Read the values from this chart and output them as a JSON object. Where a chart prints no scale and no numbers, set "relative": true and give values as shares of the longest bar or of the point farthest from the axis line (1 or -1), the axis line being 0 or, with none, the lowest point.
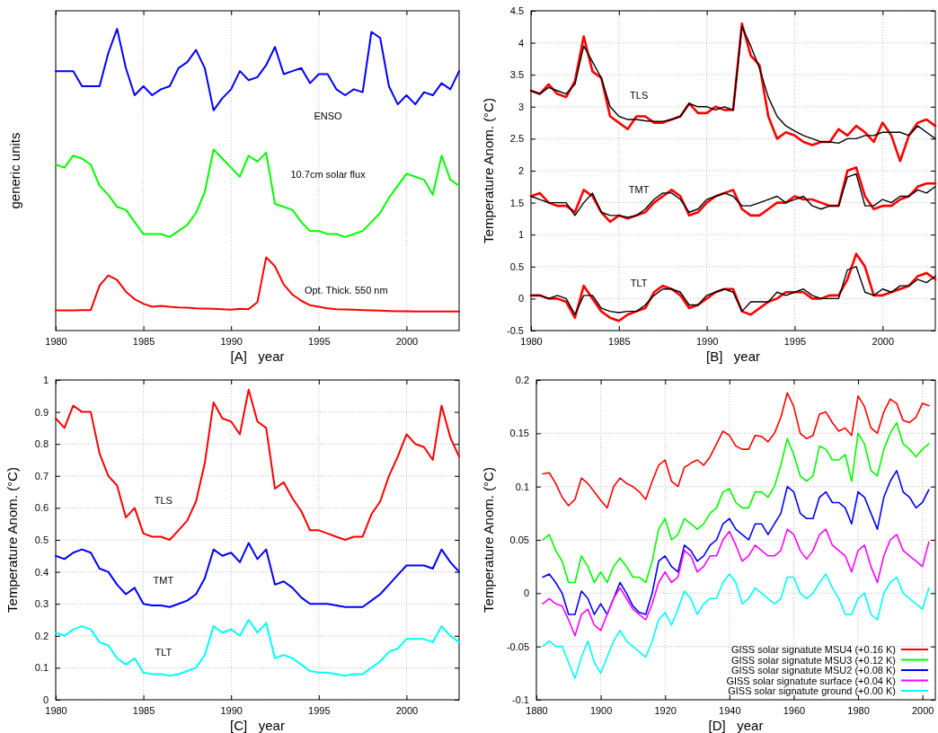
{
  "chart_data": [
    {
      "type": "line",
      "relative": true,
      "xlabel": "[A]   year",
      "ylabel": "generic units",
      "xlim": [
        1980,
        2003
      ],
      "xticks": [
        1980,
        1985,
        1990,
        1995,
        2000
      ],
      "grid": "x",
      "tick_labels": "x",
      "x": [
        1980,
        1980.5,
        1981,
        1981.5,
        1982,
        1982.5,
        1983,
        1983.5,
        1984,
        1984.5,
        1985,
        1985.5,
        1986,
        1986.5,
        1987,
        1987.5,
        1988,
        1988.5,
        1989,
        1989.5,
        1990,
        1990.5,
        1991,
        1991.5,
        1992,
        1992.5,
        1993,
        1993.5,
        1994,
        1994.5,
        1995,
        1995.5,
        1996,
        1996.5,
        1997,
        1997.5,
        1998,
        1998.5,
        1999,
        1999.5,
        2000,
        2000.5,
        2001,
        2001.5,
        2002,
        2002.5,
        2003
      ],
      "series": [
        {
          "name": "ENSO",
          "color": "#0000ff",
          "values": [
            0.86,
            0.86,
            0.86,
            0.81,
            0.81,
            0.81,
            0.92,
            1.0,
            0.87,
            0.78,
            0.81,
            0.78,
            0.8,
            0.81,
            0.87,
            0.89,
            0.93,
            0.87,
            0.73,
            0.77,
            0.8,
            0.86,
            0.83,
            0.84,
            0.88,
            0.94,
            0.85,
            0.86,
            0.87,
            0.82,
            0.85,
            0.85,
            0.8,
            0.78,
            0.8,
            0.79,
            0.99,
            0.97,
            0.81,
            0.75,
            0.78,
            0.75,
            0.79,
            0.78,
            0.82,
            0.8,
            0.86
          ]
        },
        {
          "name": "10.7cm solar flux",
          "color": "#00ff00",
          "values": [
            0.55,
            0.54,
            0.58,
            0.57,
            0.55,
            0.48,
            0.45,
            0.41,
            0.4,
            0.36,
            0.32,
            0.32,
            0.32,
            0.31,
            0.33,
            0.35,
            0.39,
            0.46,
            0.6,
            0.57,
            0.54,
            0.51,
            0.58,
            0.56,
            0.59,
            0.42,
            0.41,
            0.4,
            0.36,
            0.33,
            0.33,
            0.32,
            0.32,
            0.31,
            0.32,
            0.33,
            0.36,
            0.39,
            0.44,
            0.48,
            0.52,
            0.51,
            0.5,
            0.45,
            0.58,
            0.5,
            0.48
          ]
        },
        {
          "name": "Opt. Thick. 550 nm",
          "color": "#ff0000",
          "values": [
            0.067,
            0.067,
            0.067,
            0.068,
            0.068,
            0.149,
            0.183,
            0.168,
            0.129,
            0.104,
            0.089,
            0.079,
            0.082,
            0.079,
            0.077,
            0.076,
            0.074,
            0.073,
            0.072,
            0.071,
            0.069,
            0.072,
            0.071,
            0.094,
            0.243,
            0.213,
            0.153,
            0.119,
            0.099,
            0.084,
            0.079,
            0.074,
            0.071,
            0.07,
            0.069,
            0.068,
            0.067,
            0.066,
            0.065,
            0.064,
            0.064,
            0.063,
            0.063,
            0.063,
            0.063,
            0.063,
            0.063
          ]
        }
      ]
    },
    {
      "type": "line",
      "xlabel": "[B]   year",
      "ylabel": "Temperature Anom. (°C)",
      "xlim": [
        1980,
        2003
      ],
      "xticks": [
        1980,
        1985,
        1990,
        1995,
        2000
      ],
      "ylim": [
        -0.5,
        4.5
      ],
      "yticks": [
        -0.5,
        0,
        0.5,
        1,
        1.5,
        2,
        2.5,
        3,
        3.5,
        4,
        4.5
      ],
      "grid": true,
      "x": [
        1980,
        1980.5,
        1981,
        1981.5,
        1982,
        1982.5,
        1983,
        1983.5,
        1984,
        1984.5,
        1985,
        1985.5,
        1986,
        1986.5,
        1987,
        1987.5,
        1988,
        1988.5,
        1989,
        1989.5,
        1990,
        1990.5,
        1991,
        1991.5,
        1992,
        1992.5,
        1993,
        1993.5,
        1994,
        1994.5,
        1995,
        1995.5,
        1996,
        1996.5,
        1997,
        1997.5,
        1998,
        1998.5,
        1999,
        1999.5,
        2000,
        2000.5,
        2001,
        2001.5,
        2002,
        2002.5,
        2003
      ],
      "series": [
        {
          "name": "TLS",
          "color": "#ff0000",
          "values": [
            3.25,
            3.2,
            3.35,
            3.2,
            3.15,
            3.4,
            4.1,
            3.55,
            3.45,
            2.85,
            2.75,
            2.65,
            2.85,
            2.85,
            2.75,
            2.75,
            2.8,
            2.85,
            3.05,
            2.9,
            2.9,
            3.0,
            2.95,
            2.95,
            4.3,
            3.8,
            3.65,
            2.85,
            2.5,
            2.6,
            2.55,
            2.45,
            2.4,
            2.45,
            2.45,
            2.65,
            2.55,
            2.7,
            2.6,
            2.45,
            2.75,
            2.55,
            2.15,
            2.55,
            2.75,
            2.8,
            2.7
          ]
        },
        {
          "color": "#000000",
          "values": [
            3.25,
            3.2,
            3.3,
            3.25,
            3.2,
            3.35,
            3.95,
            3.7,
            3.45,
            3.0,
            2.85,
            2.8,
            2.8,
            2.78,
            2.77,
            2.77,
            2.8,
            2.85,
            3.05,
            3.0,
            3.0,
            2.95,
            3.0,
            2.95,
            4.25,
            3.95,
            3.6,
            3.15,
            2.85,
            2.7,
            2.62,
            2.55,
            2.5,
            2.45,
            2.45,
            2.43,
            2.5,
            2.5,
            2.55,
            2.55,
            2.6,
            2.6,
            2.6,
            2.55,
            2.7,
            2.6,
            2.5
          ]
        },
        {
          "name": "TMT",
          "color": "#ff0000",
          "values": [
            1.6,
            1.65,
            1.5,
            1.45,
            1.45,
            1.35,
            1.7,
            1.6,
            1.35,
            1.2,
            1.3,
            1.25,
            1.3,
            1.35,
            1.5,
            1.6,
            1.7,
            1.6,
            1.3,
            1.35,
            1.5,
            1.6,
            1.65,
            1.7,
            1.4,
            1.3,
            1.3,
            1.4,
            1.5,
            1.5,
            1.6,
            1.55,
            1.55,
            1.5,
            1.45,
            1.45,
            2.0,
            2.05,
            1.6,
            1.4,
            1.45,
            1.45,
            1.55,
            1.6,
            1.75,
            1.8,
            1.8
          ]
        },
        {
          "color": "#000000",
          "values": [
            1.6,
            1.55,
            1.5,
            1.5,
            1.5,
            1.3,
            1.5,
            1.65,
            1.35,
            1.3,
            1.3,
            1.27,
            1.3,
            1.4,
            1.55,
            1.65,
            1.65,
            1.55,
            1.35,
            1.4,
            1.55,
            1.6,
            1.65,
            1.6,
            1.45,
            1.45,
            1.5,
            1.55,
            1.6,
            1.5,
            1.55,
            1.6,
            1.45,
            1.4,
            1.45,
            1.45,
            1.9,
            1.95,
            1.45,
            1.45,
            1.55,
            1.5,
            1.6,
            1.6,
            1.7,
            1.65,
            1.75
          ]
        },
        {
          "name": "TLT",
          "color": "#ff0000",
          "values": [
            0.05,
            0.05,
            0,
            0,
            -0.05,
            -0.3,
            0.2,
            0,
            -0.2,
            -0.3,
            -0.35,
            -0.25,
            -0.2,
            -0.15,
            0.1,
            0.2,
            0.15,
            0.05,
            -0.15,
            -0.1,
            0,
            0.1,
            0.15,
            0.15,
            -0.2,
            -0.25,
            -0.15,
            -0.05,
            0,
            0.1,
            0.1,
            0.1,
            0,
            0,
            0.05,
            0.05,
            0.3,
            0.7,
            0.5,
            0.05,
            0.05,
            0.1,
            0.15,
            0.2,
            0.35,
            0.4,
            0.3
          ]
        },
        {
          "color": "#000000",
          "values": [
            0.05,
            0.05,
            0,
            0.05,
            0,
            -0.25,
            0.05,
            0.05,
            -0.15,
            -0.2,
            -0.22,
            -0.2,
            -0.2,
            -0.1,
            0.05,
            0.15,
            0.15,
            0.1,
            -0.1,
            -0.1,
            0.05,
            0.1,
            0.15,
            0.1,
            -0.2,
            -0.05,
            -0.05,
            -0.05,
            0.1,
            0.05,
            0.1,
            0.15,
            0.05,
            0,
            0,
            0,
            0.45,
            0.5,
            0.1,
            0.05,
            0.15,
            0.1,
            0.2,
            0.2,
            0.3,
            0.25,
            0.35
          ]
        }
      ]
    },
    {
      "type": "line",
      "xlabel": "[C]   year",
      "ylabel": "Temperature Anom. (°C)",
      "xlim": [
        1980,
        2003
      ],
      "xticks": [
        1980,
        1985,
        1990,
        1995,
        2000
      ],
      "ylim": [
        0,
        1
      ],
      "yticks": [
        0,
        0.1,
        0.2,
        0.3,
        0.4,
        0.5,
        0.6,
        0.7,
        0.8,
        0.9,
        1
      ],
      "grid": true,
      "x": [
        1980,
        1980.5,
        1981,
        1981.5,
        1982,
        1982.5,
        1983,
        1983.5,
        1984,
        1984.5,
        1985,
        1985.5,
        1986,
        1986.5,
        1987,
        1987.5,
        1988,
        1988.5,
        1989,
        1989.5,
        1990,
        1990.5,
        1991,
        1991.5,
        1992,
        1992.5,
        1993,
        1993.5,
        1994,
        1994.5,
        1995,
        1995.5,
        1996,
        1996.5,
        1997,
        1997.5,
        1998,
        1998.5,
        1999,
        1999.5,
        2000,
        2000.5,
        2001,
        2001.5,
        2002,
        2002.5,
        2003
      ],
      "series": [
        {
          "name": "TLS",
          "color": "#ff0000",
          "values": [
            0.88,
            0.85,
            0.92,
            0.9,
            0.9,
            0.77,
            0.7,
            0.67,
            0.57,
            0.6,
            0.52,
            0.51,
            0.51,
            0.5,
            0.53,
            0.56,
            0.62,
            0.74,
            0.93,
            0.88,
            0.87,
            0.83,
            0.97,
            0.87,
            0.85,
            0.66,
            0.68,
            0.63,
            0.59,
            0.53,
            0.53,
            0.52,
            0.51,
            0.5,
            0.51,
            0.51,
            0.58,
            0.62,
            0.7,
            0.76,
            0.83,
            0.8,
            0.79,
            0.75,
            0.92,
            0.82,
            0.76
          ]
        },
        {
          "name": "TMT",
          "color": "#0000ff",
          "values": [
            0.45,
            0.44,
            0.46,
            0.47,
            0.46,
            0.41,
            0.4,
            0.36,
            0.33,
            0.35,
            0.3,
            0.295,
            0.295,
            0.29,
            0.3,
            0.31,
            0.33,
            0.38,
            0.47,
            0.45,
            0.46,
            0.43,
            0.49,
            0.44,
            0.47,
            0.36,
            0.37,
            0.35,
            0.32,
            0.3,
            0.3,
            0.3,
            0.295,
            0.29,
            0.29,
            0.29,
            0.31,
            0.33,
            0.36,
            0.39,
            0.42,
            0.42,
            0.42,
            0.41,
            0.47,
            0.43,
            0.4
          ]
        },
        {
          "name": "TLT",
          "color": "#00ffff",
          "values": [
            0.21,
            0.2,
            0.22,
            0.23,
            0.22,
            0.18,
            0.17,
            0.13,
            0.11,
            0.13,
            0.085,
            0.08,
            0.08,
            0.075,
            0.08,
            0.09,
            0.1,
            0.14,
            0.23,
            0.21,
            0.22,
            0.2,
            0.25,
            0.21,
            0.24,
            0.13,
            0.14,
            0.13,
            0.11,
            0.09,
            0.085,
            0.085,
            0.08,
            0.075,
            0.08,
            0.08,
            0.1,
            0.12,
            0.15,
            0.16,
            0.19,
            0.19,
            0.19,
            0.18,
            0.23,
            0.2,
            0.18
          ]
        }
      ]
    },
    {
      "type": "line",
      "xlabel": "[D]   year",
      "ylabel": "Temperature Anom. (°C)",
      "xlim": [
        1880,
        2004
      ],
      "xticks": [
        1880,
        1900,
        1920,
        1940,
        1960,
        1980,
        2000
      ],
      "ylim": [
        -0.1,
        0.2
      ],
      "yticks": [
        -0.1,
        -0.05,
        0,
        0.05,
        0.1,
        0.15,
        0.2
      ],
      "grid": true,
      "legend": "bottom right",
      "x": [
        1882,
        1884,
        1886,
        1888,
        1890,
        1892,
        1894,
        1896,
        1898,
        1900,
        1902,
        1904,
        1906,
        1908,
        1910,
        1912,
        1914,
        1916,
        1918,
        1920,
        1922,
        1924,
        1926,
        1928,
        1930,
        1932,
        1934,
        1936,
        1938,
        1940,
        1942,
        1944,
        1946,
        1948,
        1950,
        1952,
        1954,
        1956,
        1958,
        1960,
        1962,
        1964,
        1966,
        1968,
        1970,
        1972,
        1974,
        1976,
        1978,
        1980,
        1982,
        1984,
        1986,
        1988,
        1990,
        1992,
        1994,
        1996,
        1998,
        2000,
        2002
      ],
      "series": [
        {
          "name": "GISS solar signatute MSU4 (+0.16 K)",
          "color": "#ff0000",
          "values": [
            0.112,
            0.113,
            0.103,
            0.09,
            0.082,
            0.088,
            0.108,
            0.103,
            0.095,
            0.087,
            0.08,
            0.1,
            0.108,
            0.103,
            0.1,
            0.095,
            0.088,
            0.105,
            0.12,
            0.125,
            0.105,
            0.1,
            0.118,
            0.122,
            0.125,
            0.12,
            0.128,
            0.14,
            0.152,
            0.148,
            0.138,
            0.135,
            0.135,
            0.148,
            0.147,
            0.142,
            0.15,
            0.165,
            0.188,
            0.175,
            0.15,
            0.145,
            0.148,
            0.168,
            0.17,
            0.16,
            0.152,
            0.155,
            0.148,
            0.185,
            0.175,
            0.155,
            0.15,
            0.17,
            0.182,
            0.178,
            0.162,
            0.16,
            0.165,
            0.178,
            0.176
          ]
        },
        {
          "name": "GISS solar signatute MSU3 (+0.12 K)",
          "color": "#00ff00",
          "values": [
            0.05,
            0.055,
            0.04,
            0.03,
            0.01,
            0.01,
            0.035,
            0.025,
            0.01,
            0.02,
            0.01,
            0.025,
            0.033,
            0.025,
            0.015,
            0.015,
            0.01,
            0.03,
            0.06,
            0.07,
            0.05,
            0.055,
            0.07,
            0.065,
            0.06,
            0.065,
            0.075,
            0.08,
            0.095,
            0.098,
            0.085,
            0.08,
            0.08,
            0.095,
            0.095,
            0.09,
            0.1,
            0.12,
            0.145,
            0.13,
            0.11,
            0.105,
            0.11,
            0.138,
            0.135,
            0.125,
            0.125,
            0.13,
            0.105,
            0.15,
            0.14,
            0.115,
            0.11,
            0.135,
            0.15,
            0.16,
            0.14,
            0.135,
            0.128,
            0.135,
            0.14
          ]
        },
        {
          "name": "GISS solar signatute MSU2 (+0.08 K)",
          "color": "#0000ff",
          "values": [
            0.015,
            0.018,
            0.01,
            0,
            -0.02,
            -0.02,
            0.002,
            -0.005,
            -0.02,
            -0.01,
            -0.02,
            -0.005,
            0.01,
            0,
            -0.012,
            -0.018,
            -0.02,
            0,
            0.03,
            0.035,
            0.025,
            0.02,
            0.045,
            0.04,
            0.03,
            0.035,
            0.045,
            0.05,
            0.065,
            0.07,
            0.06,
            0.055,
            0.05,
            0.065,
            0.065,
            0.055,
            0.065,
            0.075,
            0.1,
            0.095,
            0.075,
            0.07,
            0.07,
            0.09,
            0.095,
            0.085,
            0.085,
            0.08,
            0.065,
            0.095,
            0.09,
            0.075,
            0.06,
            0.09,
            0.105,
            0.115,
            0.095,
            0.09,
            0.08,
            0.085,
            0.097
          ]
        },
        {
          "name": "GISS solar signatute surface (+0.04 K)",
          "color": "#ff00ff",
          "values": [
            -0.01,
            -0.005,
            -0.01,
            -0.012,
            -0.025,
            -0.04,
            -0.02,
            -0.015,
            -0.03,
            -0.035,
            -0.02,
            -0.005,
            0.005,
            -0.005,
            -0.015,
            -0.02,
            -0.025,
            -0.01,
            0.01,
            0.02,
            0.01,
            0.015,
            0.04,
            0.035,
            0.02,
            0.025,
            0.035,
            0.035,
            0.05,
            0.058,
            0.045,
            0.03,
            0.035,
            0.045,
            0.04,
            0.035,
            0.035,
            0.04,
            0.06,
            0.055,
            0.04,
            0.032,
            0.04,
            0.055,
            0.06,
            0.045,
            0.04,
            0.035,
            0.02,
            0.04,
            0.045,
            0.025,
            0.01,
            0.035,
            0.05,
            0.055,
            0.04,
            0.035,
            0.03,
            0.025,
            0.048
          ]
        },
        {
          "name": "GISS solar signatute ground (+0.00 K)",
          "color": "#00ffff",
          "values": [
            -0.05,
            -0.045,
            -0.05,
            -0.05,
            -0.065,
            -0.08,
            -0.06,
            -0.045,
            -0.065,
            -0.075,
            -0.06,
            -0.045,
            -0.035,
            -0.045,
            -0.05,
            -0.055,
            -0.06,
            -0.045,
            -0.025,
            -0.018,
            -0.03,
            -0.015,
            0.002,
            -0.005,
            -0.02,
            -0.01,
            -0.005,
            -0.005,
            0.01,
            0.018,
            0.01,
            -0.01,
            -0.005,
            0.005,
            0,
            -0.005,
            -0.01,
            -0.005,
            0.015,
            0.015,
            0,
            -0.005,
            0,
            0.01,
            0.018,
            0.005,
            -0.005,
            -0.02,
            -0.02,
            -0.005,
            0,
            -0.02,
            -0.025,
            0,
            0.01,
            0.015,
            0,
            -0.005,
            -0.01,
            -0.015,
            0.005
          ]
        }
      ]
    }
  ]
}
